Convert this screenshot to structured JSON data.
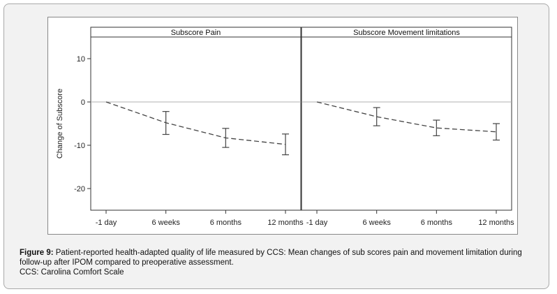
{
  "chart_data": {
    "type": "line",
    "ylabel": "Change of Subscore",
    "ylim": [
      -25,
      15
    ],
    "yticks": [
      10,
      0,
      -10,
      -20
    ],
    "categories": [
      "-1 day",
      "6 weeks",
      "6 months",
      "12 months"
    ],
    "reference_line": 0,
    "panels": [
      {
        "title": "Subscore Pain",
        "values": [
          0,
          -4.8,
          -8.3,
          -9.8
        ],
        "ci_low": [
          null,
          -7.5,
          -10.5,
          -12.2
        ],
        "ci_high": [
          null,
          -2.2,
          -6.1,
          -7.4
        ]
      },
      {
        "title": "Subscore Movement limitations",
        "values": [
          0,
          -3.4,
          -6.0,
          -6.9
        ],
        "ci_low": [
          null,
          -5.5,
          -7.8,
          -8.8
        ],
        "ci_high": [
          null,
          -1.3,
          -4.2,
          -5.0
        ]
      }
    ],
    "colors": {
      "line": "#444444",
      "refline": "#b0b0b0",
      "header_bg": "#ffffff"
    }
  },
  "caption": {
    "label": "Figure 9:",
    "text": " Patient-reported health-adapted quality of life measured by CCS: Mean changes of sub scores pain and movement limitation during follow-up after IPOM compared to preoperative assessment.",
    "abbrev": "CCS: Carolina Comfort Scale"
  }
}
